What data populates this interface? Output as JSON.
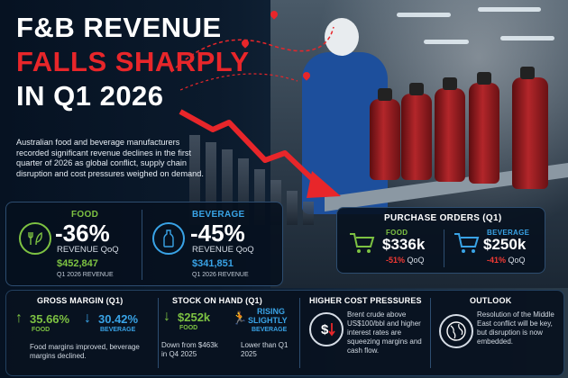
{
  "title": {
    "line1": "F&B REVENUE",
    "line2": "FALLS SHARPLY",
    "line3": "IN Q1 2026"
  },
  "intro": "Australian food and beverage manufacturers recorded significant revenue declines in the first quarter of 2026 as global conflict, supply chain disruption and cost pressures weighed on demand.",
  "colors": {
    "red": "#e8262a",
    "green": "#7dc242",
    "blue": "#39a3e6",
    "navy": "#07111f"
  },
  "food": {
    "label": "FOOD",
    "icon": "fork-leaf-icon",
    "change": "-36%",
    "change_label": "REVENUE QoQ",
    "amount": "$452,847",
    "amount_label": "Q1 2026 REVENUE"
  },
  "beverage": {
    "label": "BEVERAGE",
    "icon": "bottle-icon",
    "change": "-45%",
    "change_label": "REVENUE QoQ",
    "amount": "$341,851",
    "amount_label": "Q1 2026 REVENUE"
  },
  "purchase_orders": {
    "title": "PURCHASE ORDERS (Q1)",
    "food": {
      "label": "FOOD",
      "value": "$336k",
      "change": "-51%",
      "period": "QoQ",
      "icon": "cart-icon"
    },
    "beverage": {
      "label": "BEVERAGE",
      "value": "$250k",
      "change": "-41%",
      "period": "QoQ",
      "icon": "cart-icon"
    }
  },
  "gross_margin": {
    "title": "GROSS MARGIN (Q1)",
    "food_value": "35.66%",
    "food_label": "FOOD",
    "bev_value": "30.42%",
    "bev_label": "BEVERAGE",
    "note": "Food margins improved, beverage margins declined."
  },
  "stock": {
    "title": "STOCK ON HAND (Q1)",
    "food_value": "$252k",
    "food_label": "FOOD",
    "food_note": "Down from $463k in Q4 2025",
    "bev_line1": "RISING",
    "bev_line2": "SLIGHTLY",
    "bev_label": "BEVERAGE",
    "bev_note": "Lower than Q1 2025"
  },
  "cost": {
    "title": "HIGHER COST PRESSURES",
    "icon": "dollar-down-icon",
    "text": "Brent crude above US$100/bbl and higher interest rates are squeezing margins and cash flow."
  },
  "outlook": {
    "title": "OUTLOOK",
    "icon": "globe-icon",
    "text": "Resolution of the Middle East conflict will be key, but disruption is now embedded."
  }
}
